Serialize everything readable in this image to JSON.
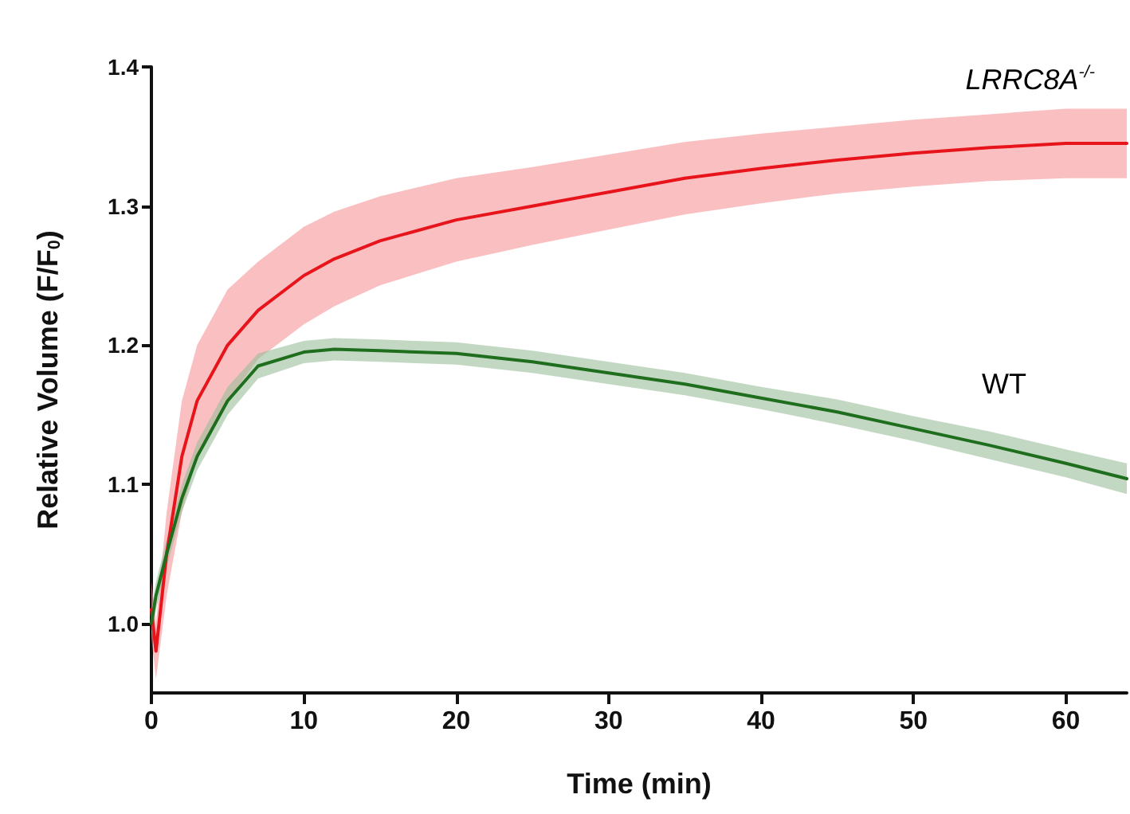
{
  "chart_data": {
    "type": "line",
    "xlabel": "Time (min)",
    "ylabel": "Relative Volume (F/F$_{0}$)",
    "xlim": [
      0,
      64
    ],
    "xticks": [
      0,
      10,
      20,
      30,
      40,
      50,
      60
    ],
    "ylim": [
      0.95,
      1.4
    ],
    "yticks": [
      {
        "value": 1,
        "label": "1.0"
      },
      1.1,
      1.2,
      1.3,
      1.4
    ],
    "grid": false,
    "legend": false,
    "marker": "none",
    "line_style": "solid",
    "x": [
      0,
      0.3,
      1,
      2,
      3,
      5,
      7,
      10,
      12,
      15,
      20,
      25,
      30,
      35,
      40,
      45,
      50,
      55,
      60,
      64
    ],
    "series": [
      {
        "name": "LRRC8A$^{-/-}$",
        "color": "#e8141b",
        "values": [
          1.01,
          0.98,
          1.05,
          1.12,
          1.16,
          1.2,
          1.225,
          1.25,
          1.262,
          1.275,
          1.29,
          1.3,
          1.31,
          1.32,
          1.327,
          1.333,
          1.338,
          1.342,
          1.345,
          1.345
        ],
        "lower": [
          0.99,
          0.96,
          1.02,
          1.08,
          1.12,
          1.16,
          1.19,
          1.215,
          1.228,
          1.243,
          1.26,
          1.272,
          1.283,
          1.294,
          1.302,
          1.309,
          1.314,
          1.318,
          1.32,
          1.32
        ],
        "upper": [
          1.03,
          1.0,
          1.08,
          1.16,
          1.2,
          1.24,
          1.26,
          1.285,
          1.296,
          1.307,
          1.32,
          1.328,
          1.337,
          1.346,
          1.352,
          1.357,
          1.362,
          1.366,
          1.37,
          1.37
        ]
      },
      {
        "name": "WT",
        "color": "#1e6e1e",
        "values": [
          1.0,
          1.02,
          1.05,
          1.09,
          1.12,
          1.16,
          1.185,
          1.195,
          1.197,
          1.196,
          1.194,
          1.188,
          1.18,
          1.172,
          1.162,
          1.152,
          1.14,
          1.128,
          1.115,
          1.104
        ],
        "lower": [
          0.99,
          1.01,
          1.04,
          1.08,
          1.11,
          1.15,
          1.176,
          1.187,
          1.189,
          1.188,
          1.186,
          1.18,
          1.172,
          1.164,
          1.154,
          1.143,
          1.131,
          1.118,
          1.105,
          1.093
        ],
        "upper": [
          1.01,
          1.03,
          1.06,
          1.1,
          1.13,
          1.17,
          1.194,
          1.203,
          1.205,
          1.204,
          1.202,
          1.196,
          1.188,
          1.18,
          1.17,
          1.161,
          1.149,
          1.138,
          1.125,
          1.115
        ]
      }
    ]
  }
}
